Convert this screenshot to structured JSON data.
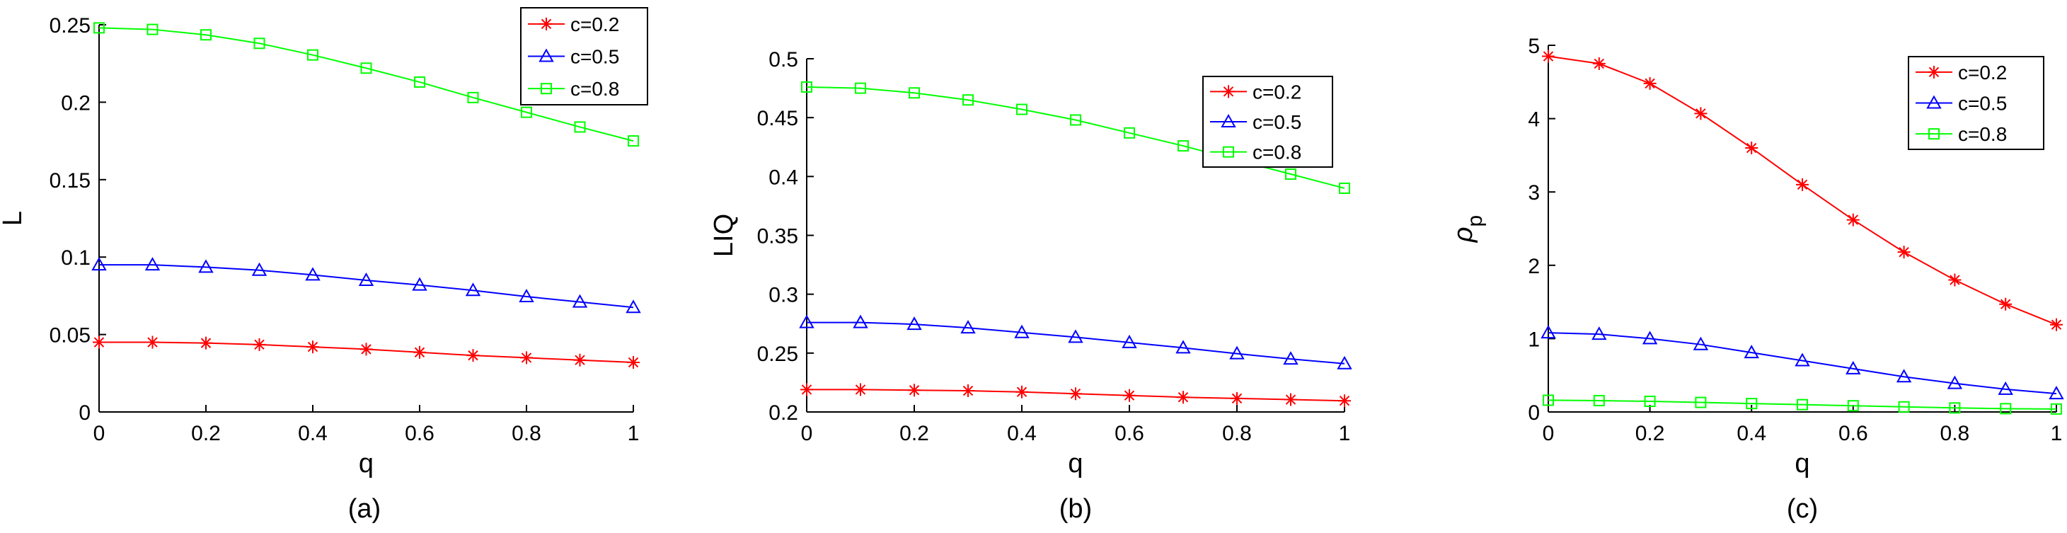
{
  "chart_data": [
    {
      "type": "line",
      "caption": "(a)",
      "xlabel": "q",
      "ylabel": "L",
      "xlim": [
        0,
        1
      ],
      "ylim": [
        0,
        0.25
      ],
      "xticks": [
        "0",
        "0.2",
        "0.4",
        "0.6",
        "0.8",
        "1"
      ],
      "yticks": [
        "0",
        "0.05",
        "0.1",
        "0.15",
        "0.2",
        "0.25"
      ],
      "legend_position": "top-right",
      "x": [
        0,
        0.1,
        0.2,
        0.3,
        0.4,
        0.5,
        0.6,
        0.7,
        0.8,
        0.9,
        1
      ],
      "series": [
        {
          "name": "c=0.2",
          "color": "#ff0000",
          "marker": "star",
          "values": [
            0.045,
            0.045,
            0.0445,
            0.0435,
            0.042,
            0.0405,
            0.0385,
            0.0365,
            0.035,
            0.0335,
            0.032
          ]
        },
        {
          "name": "c=0.5",
          "color": "#0000ff",
          "marker": "triangle",
          "values": [
            0.095,
            0.095,
            0.0935,
            0.0915,
            0.0885,
            0.085,
            0.082,
            0.0785,
            0.0745,
            0.071,
            0.0675
          ]
        },
        {
          "name": "c=0.8",
          "color": "#00ff00",
          "marker": "square",
          "values": [
            0.248,
            0.247,
            0.2435,
            0.238,
            0.2305,
            0.222,
            0.213,
            0.203,
            0.1935,
            0.184,
            0.175
          ]
        }
      ]
    },
    {
      "type": "line",
      "caption": "(b)",
      "xlabel": "q",
      "ylabel": "LIQ",
      "xlim": [
        0,
        1
      ],
      "ylim": [
        0.2,
        0.5
      ],
      "xticks": [
        "0",
        "0.2",
        "0.4",
        "0.6",
        "0.8",
        "1"
      ],
      "yticks": [
        "0.2",
        "0.25",
        "0.3",
        "0.35",
        "0.4",
        "0.45",
        "0.5"
      ],
      "legend_position": "top-right",
      "x": [
        0,
        0.1,
        0.2,
        0.3,
        0.4,
        0.5,
        0.6,
        0.7,
        0.8,
        0.9,
        1
      ],
      "series": [
        {
          "name": "c=0.2",
          "color": "#ff0000",
          "marker": "star",
          "values": [
            0.219,
            0.219,
            0.2185,
            0.218,
            0.217,
            0.2155,
            0.214,
            0.2125,
            0.2115,
            0.2105,
            0.2095
          ]
        },
        {
          "name": "c=0.5",
          "color": "#0000ff",
          "marker": "triangle",
          "values": [
            0.276,
            0.276,
            0.2745,
            0.2715,
            0.2675,
            0.2635,
            0.259,
            0.2545,
            0.2495,
            0.245,
            0.241
          ]
        },
        {
          "name": "c=0.8",
          "color": "#00ff00",
          "marker": "square",
          "values": [
            0.476,
            0.475,
            0.471,
            0.465,
            0.457,
            0.448,
            0.437,
            0.426,
            0.414,
            0.402,
            0.39
          ]
        }
      ]
    },
    {
      "type": "line",
      "caption": "(c)",
      "xlabel": "q",
      "ylabel_main": "ρ",
      "ylabel_sub": "p",
      "xlim": [
        0,
        1
      ],
      "ylim": [
        0,
        5
      ],
      "xticks": [
        "0",
        "0.2",
        "0.4",
        "0.6",
        "0.8",
        "1"
      ],
      "yticks": [
        "0",
        "1",
        "2",
        "3",
        "4",
        "5"
      ],
      "legend_position": "top-right",
      "x": [
        0,
        0.1,
        0.2,
        0.3,
        0.4,
        0.5,
        0.6,
        0.7,
        0.8,
        0.9,
        1
      ],
      "series": [
        {
          "name": "c=0.2",
          "color": "#ff0000",
          "marker": "star",
          "values": [
            4.85,
            4.75,
            4.48,
            4.07,
            3.6,
            3.1,
            2.62,
            2.18,
            1.8,
            1.47,
            1.19
          ]
        },
        {
          "name": "c=0.5",
          "color": "#0000ff",
          "marker": "triangle",
          "values": [
            1.08,
            1.06,
            1.0,
            0.92,
            0.81,
            0.7,
            0.59,
            0.48,
            0.39,
            0.31,
            0.25
          ]
        },
        {
          "name": "c=0.8",
          "color": "#00ff00",
          "marker": "square",
          "values": [
            0.16,
            0.155,
            0.145,
            0.13,
            0.115,
            0.1,
            0.085,
            0.07,
            0.055,
            0.045,
            0.04
          ]
        }
      ]
    }
  ]
}
